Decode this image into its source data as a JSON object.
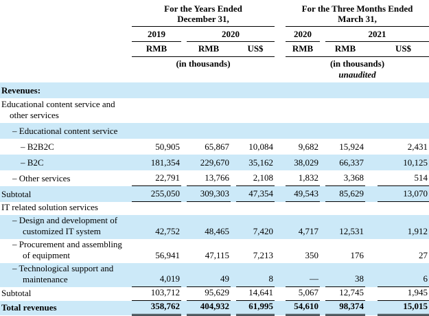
{
  "table": {
    "highlight_color": "#cce9f8",
    "header": {
      "groups": [
        {
          "title": "For the Years Ended\nDecember 31,",
          "years": [
            {
              "label": "2019",
              "span": 1
            },
            {
              "label": "2020",
              "span": 2
            }
          ],
          "currencies": [
            "RMB",
            "RMB",
            "US$"
          ],
          "note": "(in thousands)",
          "unaudited": ""
        },
        {
          "title": "For the Three Months Ended\nMarch 31,",
          "years": [
            {
              "label": "2020",
              "span": 1
            },
            {
              "label": "2021",
              "span": 2
            }
          ],
          "currencies": [
            "RMB",
            "RMB",
            "US$"
          ],
          "note": "(in thousands)",
          "unaudited": "unaudited"
        }
      ]
    },
    "rows": [
      {
        "label": "Revenues:",
        "indent": 0,
        "bold": true,
        "shaded": true,
        "border": "none",
        "values": [
          "",
          "",
          "",
          "",
          "",
          ""
        ]
      },
      {
        "label": "Educational content service and\nother services",
        "indent": 0,
        "bold": false,
        "shaded": false,
        "border": "none",
        "values": [
          "",
          "",
          "",
          "",
          "",
          ""
        ]
      },
      {
        "label": "– Educational content service",
        "indent": 1,
        "bold": false,
        "shaded": true,
        "border": "none",
        "values": [
          "",
          "",
          "",
          "",
          "",
          ""
        ]
      },
      {
        "label": "– B2B2C",
        "indent": 2,
        "bold": false,
        "shaded": false,
        "border": "none",
        "values": [
          "50,905",
          "65,867",
          "10,084",
          "9,682",
          "15,924",
          "2,431"
        ]
      },
      {
        "label": "– B2C",
        "indent": 2,
        "bold": false,
        "shaded": true,
        "border": "none",
        "values": [
          "181,354",
          "229,670",
          "35,162",
          "38,029",
          "66,337",
          "10,125"
        ]
      },
      {
        "label": "– Other services",
        "indent": 1,
        "bold": false,
        "shaded": false,
        "border": "single",
        "values": [
          "22,791",
          "13,766",
          "2,108",
          "1,832",
          "3,368",
          "514"
        ]
      },
      {
        "label": "Subtotal",
        "indent": 0,
        "bold": false,
        "shaded": true,
        "border": "single",
        "values": [
          "255,050",
          "309,303",
          "47,354",
          "49,543",
          "85,629",
          "13,070"
        ]
      },
      {
        "label": "IT related solution services",
        "indent": 0,
        "bold": false,
        "shaded": false,
        "border": "none",
        "values": [
          "",
          "",
          "",
          "",
          "",
          ""
        ]
      },
      {
        "label": "– Design and development of\ncustomized IT system",
        "indent": 1,
        "bold": false,
        "shaded": true,
        "border": "none",
        "values": [
          "42,752",
          "48,465",
          "7,420",
          "4,717",
          "12,531",
          "1,912"
        ]
      },
      {
        "label": "– Procurement and assembling\nof equipment",
        "indent": 1,
        "bold": false,
        "shaded": false,
        "border": "none",
        "values": [
          "56,941",
          "47,115",
          "7,213",
          "350",
          "176",
          "27"
        ]
      },
      {
        "label": "– Technological support and\nmaintenance",
        "indent": 1,
        "bold": false,
        "shaded": true,
        "border": "single",
        "values": [
          "4,019",
          "49",
          "8",
          "—",
          "38",
          "6"
        ]
      },
      {
        "label": "Subtotal",
        "indent": 0,
        "bold": false,
        "shaded": false,
        "border": "single",
        "values": [
          "103,712",
          "95,629",
          "14,641",
          "5,067",
          "12,745",
          "1,945"
        ]
      },
      {
        "label": "Total revenues",
        "indent": 0,
        "bold": true,
        "shaded": true,
        "border": "double",
        "values": [
          "358,762",
          "404,932",
          "61,995",
          "54,610",
          "98,374",
          "15,015"
        ]
      }
    ]
  }
}
